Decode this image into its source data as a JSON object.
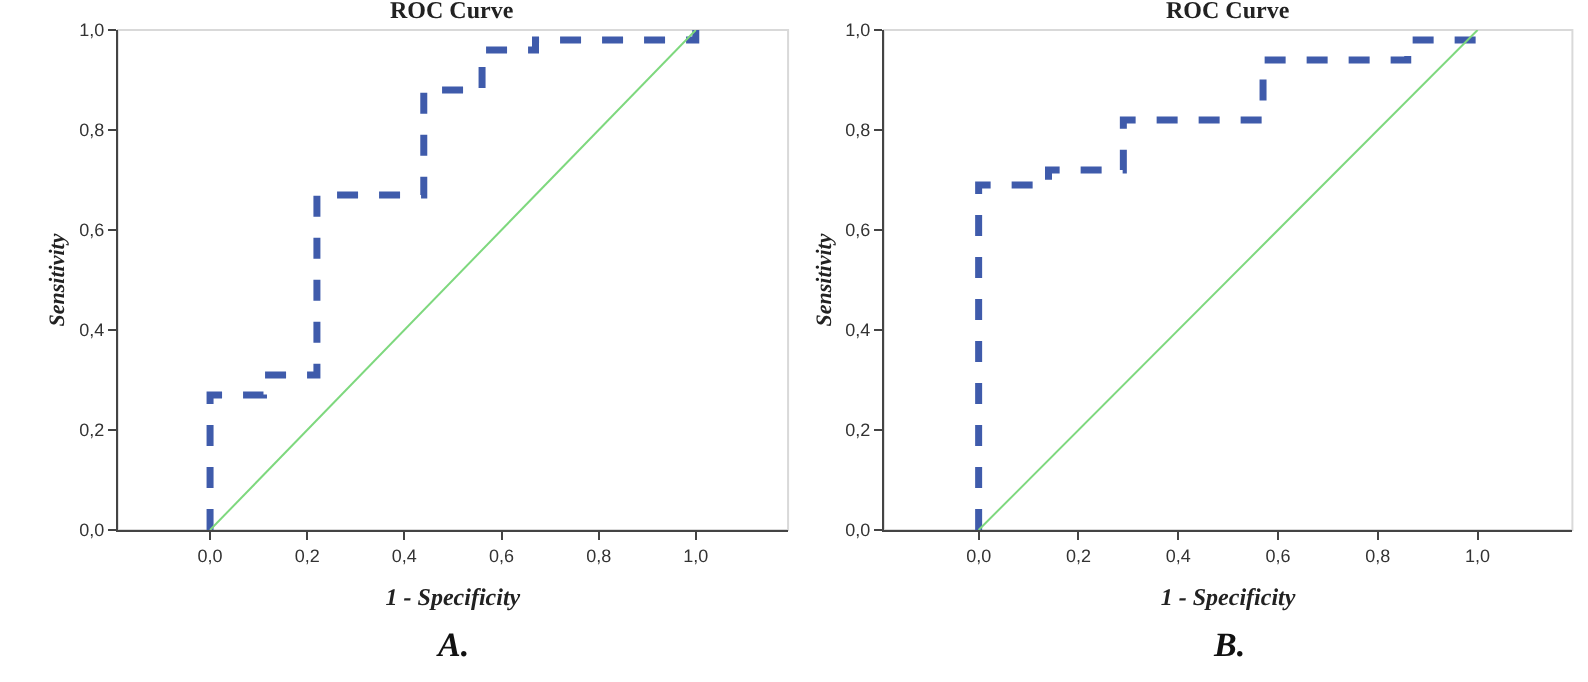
{
  "chart_data": [
    {
      "type": "line",
      "title": "ROC Curve",
      "xlabel": "1 - Specificity",
      "ylabel": "Sensitivity",
      "annotations": [
        "A."
      ],
      "xlim": [
        -0.19,
        1.19
      ],
      "ylim": [
        0,
        1
      ],
      "xticks": [
        {
          "value": 0,
          "label": "0,0"
        },
        {
          "value": 0.2,
          "label": "0,2"
        },
        {
          "value": 0.4,
          "label": "0,4"
        },
        {
          "value": 0.6,
          "label": "0,6"
        },
        {
          "value": 0.8,
          "label": "0,8"
        },
        {
          "value": 1,
          "label": "1,0"
        }
      ],
      "yticks": [
        {
          "value": 0,
          "label": "0,0"
        },
        {
          "value": 0.2,
          "label": "0,2"
        },
        {
          "value": 0.4,
          "label": "0,4"
        },
        {
          "value": 0.6,
          "label": "0,6"
        },
        {
          "value": 0.8,
          "label": "0,8"
        },
        {
          "value": 1,
          "label": "1,0"
        }
      ],
      "grid": false,
      "marker": "none",
      "series": [
        {
          "color": "#3f5bab",
          "line_style": "dashed",
          "x": [
            0,
            0,
            0.11,
            0.11,
            0.22,
            0.22,
            0.44,
            0.44,
            0.56,
            0.56,
            0.67,
            0.67,
            1,
            1
          ],
          "values": [
            0,
            0.27,
            0.27,
            0.31,
            0.31,
            0.67,
            0.67,
            0.88,
            0.88,
            0.96,
            0.96,
            0.98,
            0.98,
            1
          ]
        },
        {
          "color": "#7ed87e",
          "line_style": "solid",
          "x": [
            0,
            1
          ],
          "values": [
            0,
            1
          ]
        }
      ]
    },
    {
      "type": "line",
      "title": "ROC Curve",
      "xlabel": "1 - Specificity",
      "ylabel": "Sensitivity",
      "annotations": [
        "B."
      ],
      "xlim": [
        -0.19,
        1.19
      ],
      "ylim": [
        0,
        1
      ],
      "xticks": [
        {
          "value": 0,
          "label": "0,0"
        },
        {
          "value": 0.2,
          "label": "0,2"
        },
        {
          "value": 0.4,
          "label": "0,4"
        },
        {
          "value": 0.6,
          "label": "0,6"
        },
        {
          "value": 0.8,
          "label": "0,8"
        },
        {
          "value": 1,
          "label": "1,0"
        }
      ],
      "yticks": [
        {
          "value": 0,
          "label": "0,0"
        },
        {
          "value": 0.2,
          "label": "0,2"
        },
        {
          "value": 0.4,
          "label": "0,4"
        },
        {
          "value": 0.6,
          "label": "0,6"
        },
        {
          "value": 0.8,
          "label": "0,8"
        },
        {
          "value": 1,
          "label": "1,0"
        }
      ],
      "grid": false,
      "marker": "none",
      "series": [
        {
          "color": "#3f5bab",
          "line_style": "dashed",
          "x": [
            0,
            0,
            0.14,
            0.14,
            0.29,
            0.29,
            0.57,
            0.57,
            0.86,
            0.86,
            1,
            1
          ],
          "values": [
            0,
            0.69,
            0.69,
            0.72,
            0.72,
            0.82,
            0.82,
            0.94,
            0.94,
            0.98,
            0.98,
            1
          ]
        },
        {
          "color": "#7ed87e",
          "line_style": "solid",
          "x": [
            0,
            1
          ],
          "values": [
            0,
            1
          ]
        }
      ]
    }
  ]
}
